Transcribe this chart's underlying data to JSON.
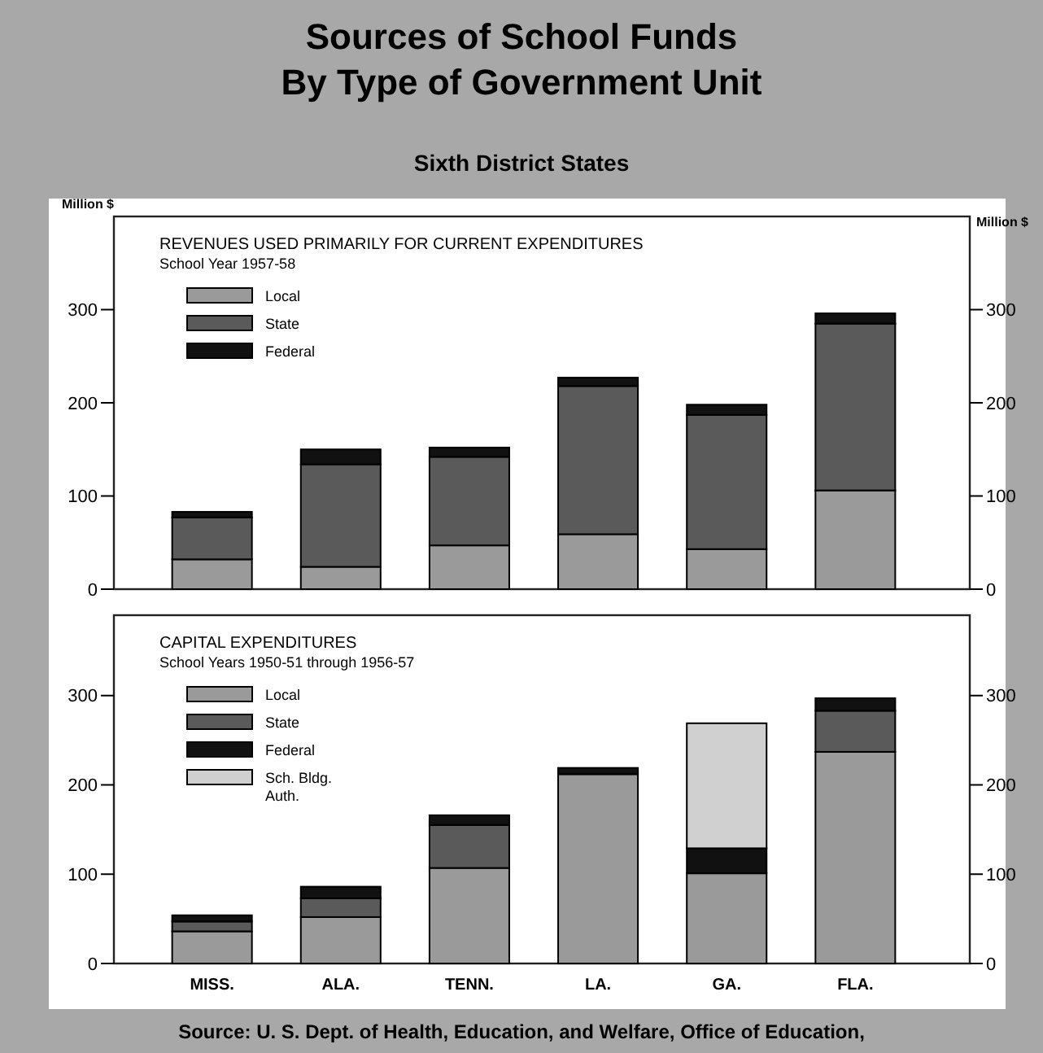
{
  "chart_data": [
    {
      "type": "bar",
      "stacked": true,
      "title": "REVENUES USED PRIMARILY FOR CURRENT EXPENDITURES",
      "subtitle": "School Year 1957-58",
      "ylabel": "Million $",
      "y2label": "Million $",
      "annotations": [
        "Sources of School Funds",
        "By Type of Government Unit",
        "Sixth District States"
      ],
      "categories": [
        null,
        null,
        null,
        null,
        null,
        null
      ],
      "series": [
        {
          "name": "Local",
          "color": "#9a9a9a",
          "values": [
            32,
            24,
            47,
            59,
            43,
            106
          ]
        },
        {
          "name": "State",
          "color": "#5a5a5a",
          "values": [
            45,
            110,
            95,
            159,
            144,
            179
          ]
        },
        {
          "name": "Federal",
          "color": "#111111",
          "values": [
            6,
            16,
            10,
            9,
            11,
            11
          ]
        }
      ],
      "ylim": [
        0,
        400
      ],
      "yticks": [
        0,
        100,
        200,
        300
      ],
      "y2lim": [
        0,
        400
      ],
      "y2ticks": [
        0,
        100,
        200,
        300
      ],
      "tick_labels": "y",
      "legend": "top left",
      "grid": false
    },
    {
      "type": "bar",
      "stacked": true,
      "title": "CAPITAL EXPENDITURES",
      "subtitle": "School Years 1950-51 through 1956-57",
      "annotations": [
        "Source: U. S. Dept. of Health, Education, and Welfare, Office of Education,"
      ],
      "categories": [
        "MISS.",
        "ALA.",
        "TENN.",
        "LA.",
        "GA.",
        "FLA."
      ],
      "series": [
        {
          "name": "Local",
          "color": "#9a9a9a",
          "values": [
            36,
            52,
            107,
            212,
            101,
            237
          ]
        },
        {
          "name": "State",
          "color": "#5a5a5a",
          "values": [
            11,
            21,
            48,
            0,
            0,
            46
          ]
        },
        {
          "name": "Federal",
          "color": "#111111",
          "values": [
            7,
            13,
            11,
            7,
            28,
            14
          ]
        },
        {
          "name": "Sch. Bldg. Auth.",
          "color": "#d0d0d0",
          "values": [
            0,
            0,
            0,
            0,
            140,
            0
          ]
        }
      ],
      "ylim": [
        0,
        390
      ],
      "yticks": [
        0,
        100,
        200,
        300
      ],
      "y2lim": [
        0,
        390
      ],
      "y2ticks": [
        0,
        100,
        200,
        300
      ],
      "legend": "top left",
      "grid": false
    }
  ]
}
